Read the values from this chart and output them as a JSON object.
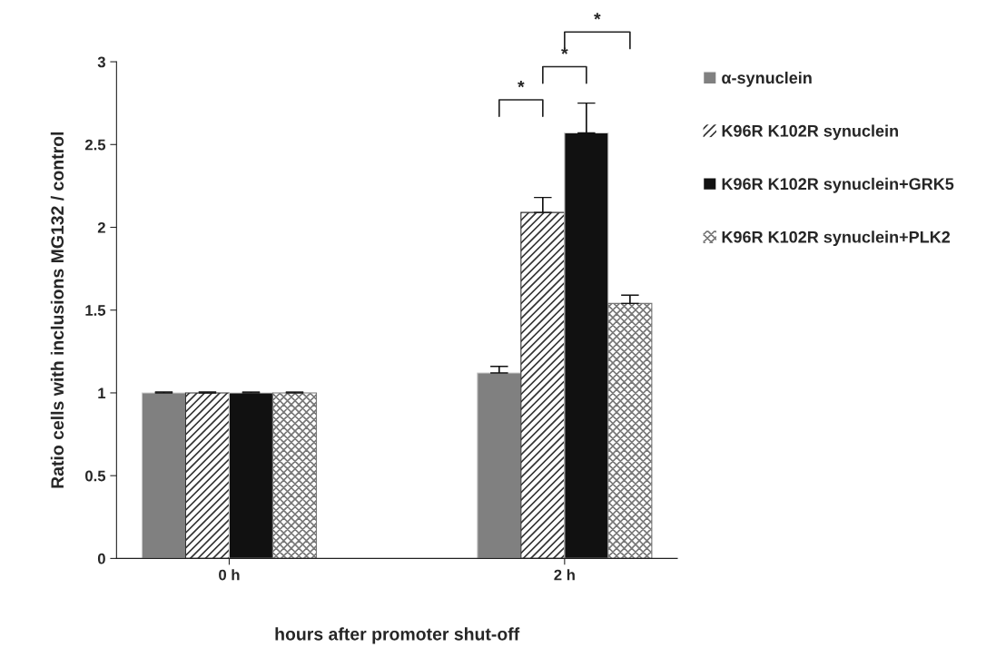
{
  "chart_data": {
    "type": "bar",
    "xlabel": "hours after promoter shut-off",
    "ylabel": "Ratio cells with inclusions MG132 / control",
    "categories": [
      "0 h",
      "2 h"
    ],
    "series": [
      {
        "name": "α-synuclein",
        "color": "#808080",
        "values": [
          1,
          1.12
        ],
        "errors": [
          0.005,
          0.04
        ]
      },
      {
        "name": "K96R K102R synuclein",
        "color": "#333333",
        "values": [
          1,
          2.09
        ],
        "errors": [
          0.005,
          0.09
        ]
      },
      {
        "name": "K96R K102R synuclein+GRK5",
        "color": "#111111",
        "values": [
          1,
          2.57
        ],
        "errors": [
          0.005,
          0.18
        ]
      },
      {
        "name": "K96R K102R synuclein+PLK2",
        "color": "#777777",
        "values": [
          1,
          1.54
        ],
        "errors": [
          0.005,
          0.05
        ]
      }
    ],
    "ylim": [
      0,
      3
    ],
    "yticks": [
      0,
      0.5,
      1,
      1.5,
      2,
      2.5,
      3
    ],
    "grid": false,
    "legend": "right",
    "annotations": [
      "*",
      "*",
      "*"
    ]
  }
}
